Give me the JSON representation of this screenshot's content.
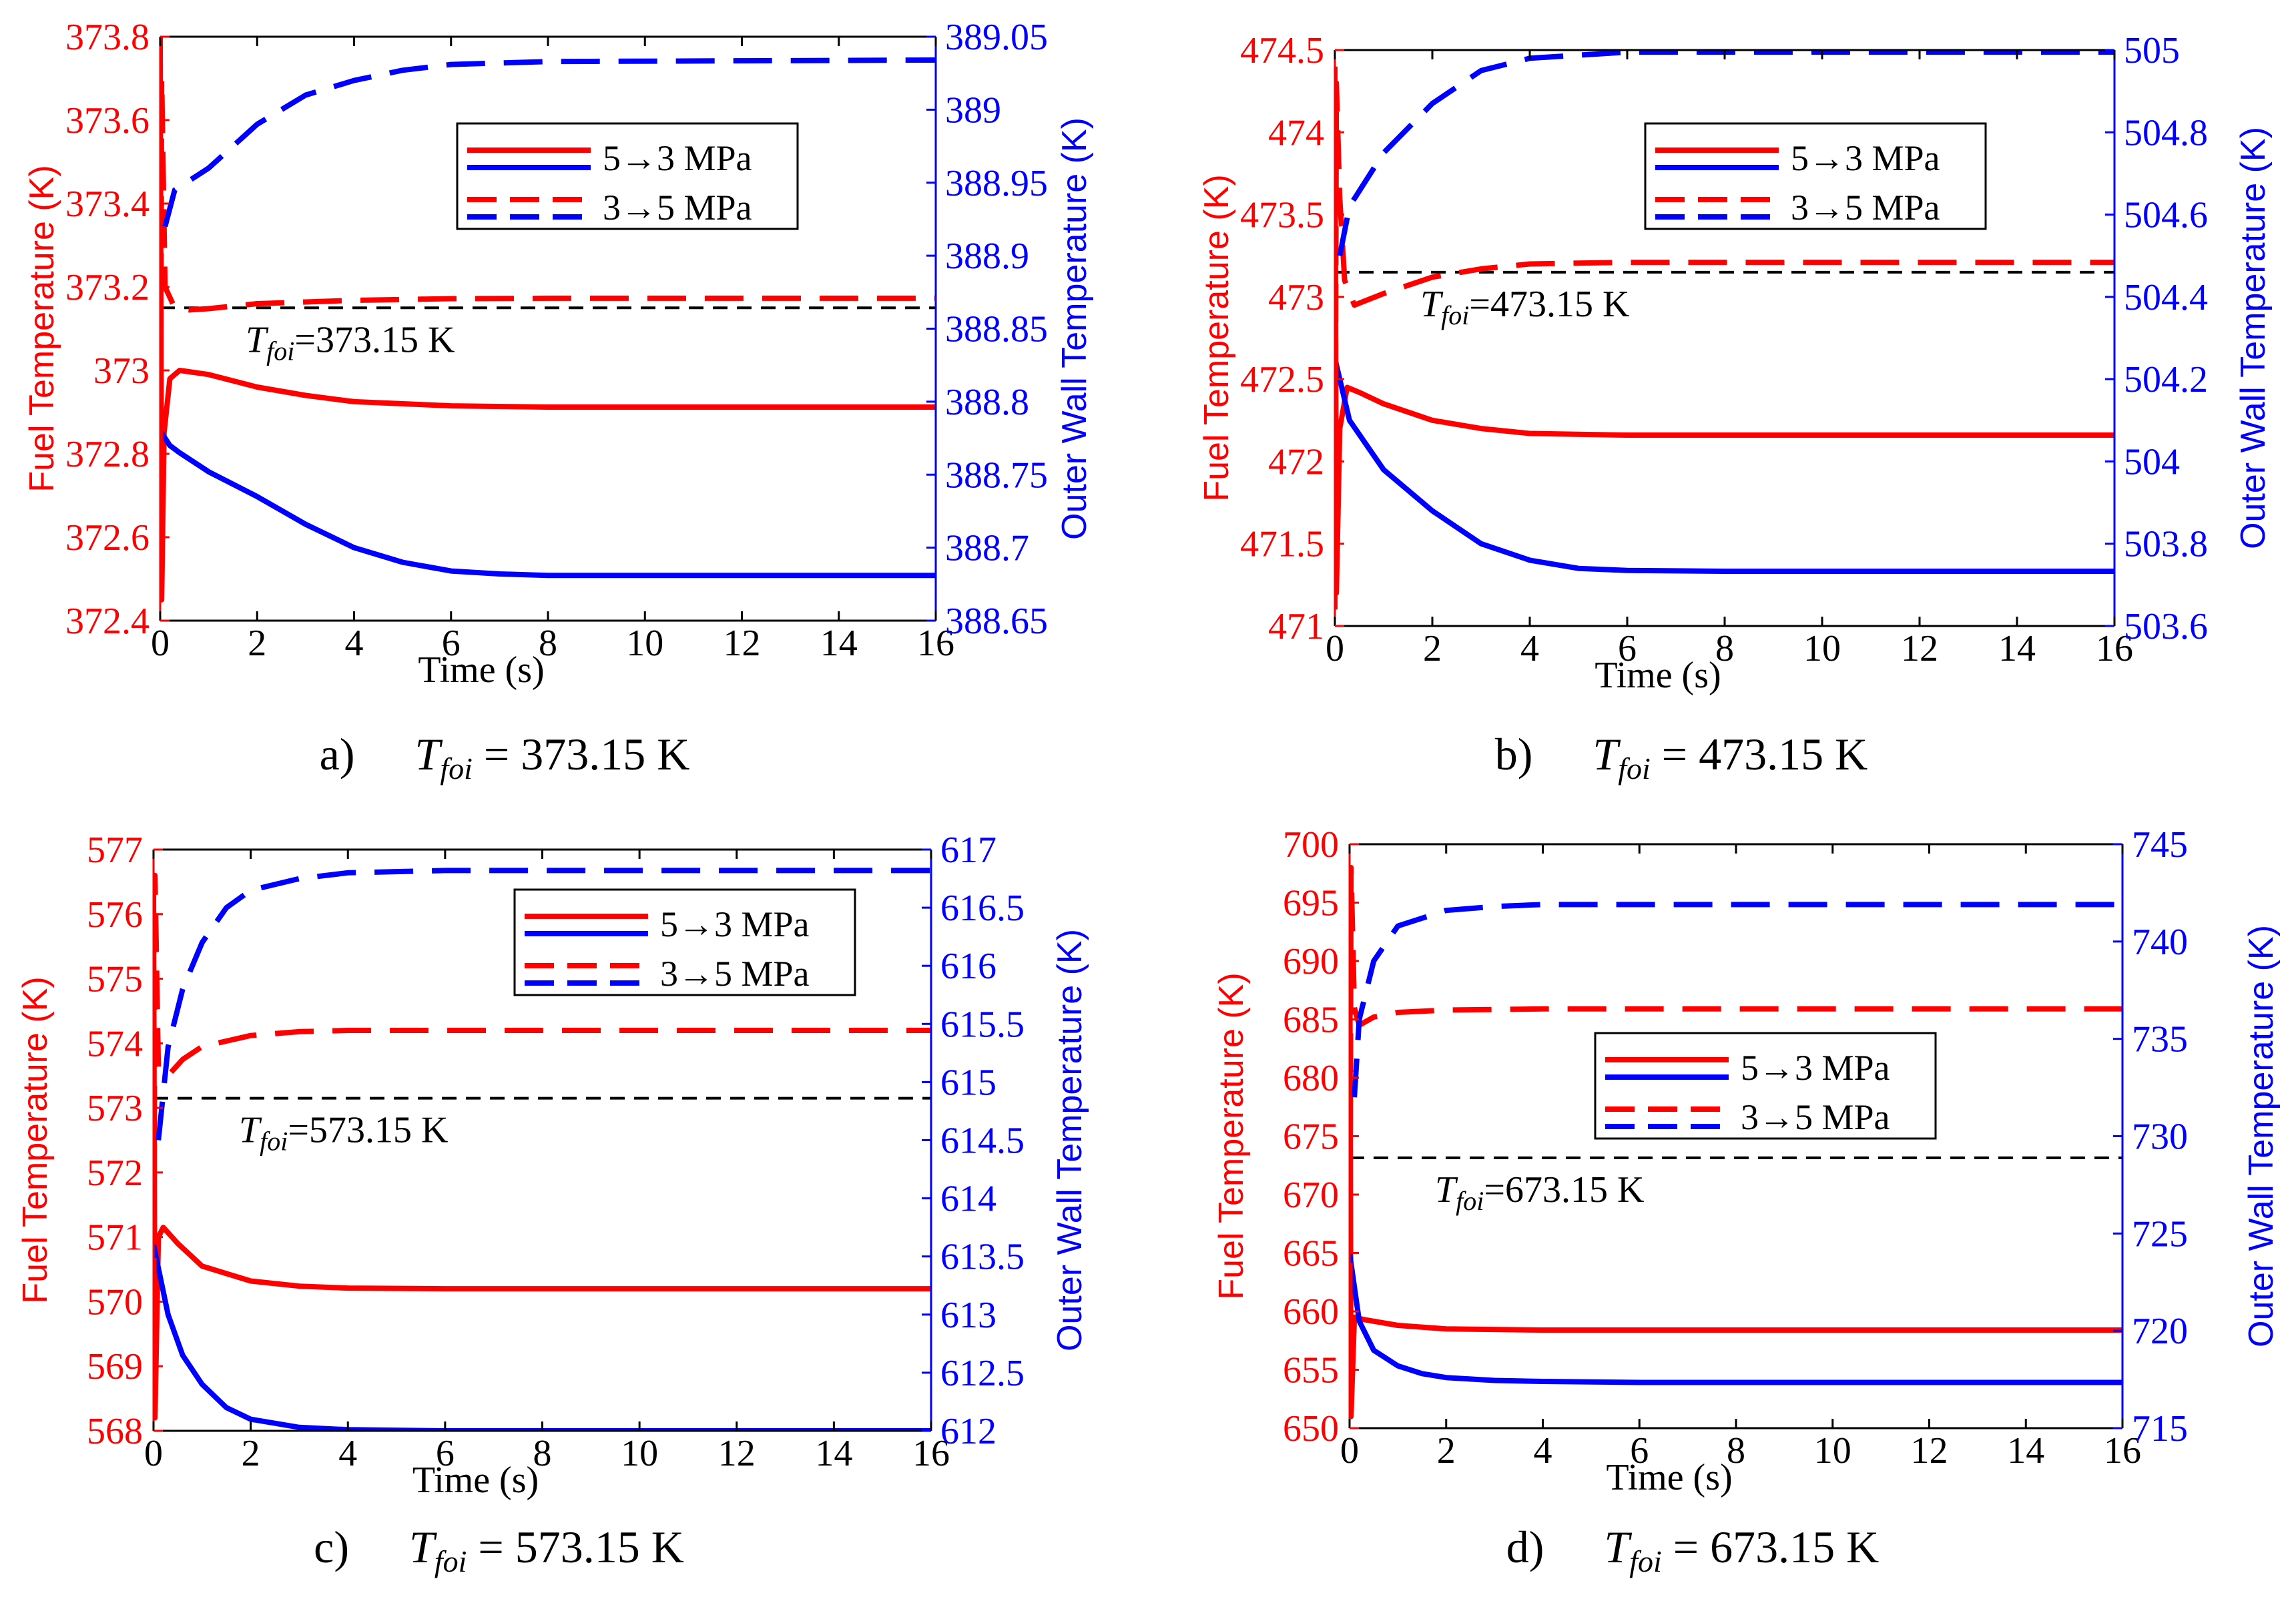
{
  "colors": {
    "left_axis": "#ff0000",
    "right_axis": "#0000ff",
    "reference": "#000000"
  },
  "chart_data": [
    {
      "type": "line",
      "panel_label": "a)",
      "caption_symbol": "T",
      "caption_sub": "foi",
      "caption_value": " = 373.15 K",
      "xlabel": "Time (s)",
      "ylabel_left": "Fuel Temperature (K)",
      "ylabel_right": "Outer Wall Temperature (K)",
      "xlim": [
        0,
        16
      ],
      "xticks": [
        0,
        2,
        4,
        6,
        8,
        10,
        12,
        14,
        16
      ],
      "ylim_left": [
        372.4,
        373.8
      ],
      "yticks_left": [
        "372.4",
        "372.6",
        "372.8",
        "373",
        "373.2",
        "373.4",
        "373.6",
        "373.8"
      ],
      "ylim_right": [
        388.65,
        389.05
      ],
      "yticks_right": [
        "388.65",
        "388.7",
        "388.75",
        "388.8",
        "388.85",
        "388.9",
        "388.95",
        "389",
        "389.05"
      ],
      "reference": {
        "value": 373.15,
        "label_symbol": "T",
        "label_sub": "foi",
        "label_value": "=373.15 K"
      },
      "legend": [
        "5→3 MPa",
        "3→5 MPa"
      ],
      "legend_position": "top-right",
      "series": [
        {
          "name": "Fuel 5→3 MPa",
          "axis": "left",
          "style": "solid",
          "points": [
            [
              0,
              373.8
            ],
            [
              0.03,
              372.45
            ],
            [
              0.08,
              372.85
            ],
            [
              0.2,
              372.98
            ],
            [
              0.4,
              373.0
            ],
            [
              1,
              372.99
            ],
            [
              2,
              372.96
            ],
            [
              3,
              372.94
            ],
            [
              4,
              372.925
            ],
            [
              6,
              372.915
            ],
            [
              8,
              372.912
            ],
            [
              16,
              372.912
            ]
          ]
        },
        {
          "name": "Wall 5→3 MPa",
          "axis": "right",
          "style": "solid",
          "points": [
            [
              0,
              388.78
            ],
            [
              0.2,
              388.77
            ],
            [
              0.4,
              388.765
            ],
            [
              1,
              388.752
            ],
            [
              2,
              388.735
            ],
            [
              3,
              388.716
            ],
            [
              4,
              388.7
            ],
            [
              5,
              388.69
            ],
            [
              6,
              388.684
            ],
            [
              7,
              388.682
            ],
            [
              8,
              388.681
            ],
            [
              16,
              388.681
            ]
          ]
        },
        {
          "name": "Fuel 3→5 MPa",
          "axis": "left",
          "style": "dashed",
          "points": [
            [
              0,
              372.5
            ],
            [
              0.03,
              373.7
            ],
            [
              0.1,
              373.2
            ],
            [
              0.3,
              373.15
            ],
            [
              0.6,
              373.145
            ],
            [
              1,
              373.148
            ],
            [
              2,
              373.16
            ],
            [
              4,
              373.168
            ],
            [
              6,
              373.172
            ],
            [
              8,
              373.173
            ],
            [
              16,
              373.173
            ]
          ]
        },
        {
          "name": "Wall 3→5 MPa",
          "axis": "right",
          "style": "dashed",
          "points": [
            [
              0.1,
              388.92
            ],
            [
              0.3,
              388.945
            ],
            [
              1,
              388.96
            ],
            [
              2,
              388.99
            ],
            [
              3,
              389.01
            ],
            [
              4,
              389.02
            ],
            [
              5,
              389.027
            ],
            [
              6,
              389.031
            ],
            [
              8,
              389.033
            ],
            [
              16,
              389.034
            ]
          ]
        }
      ]
    },
    {
      "type": "line",
      "panel_label": "b)",
      "caption_symbol": "T",
      "caption_sub": "foi",
      "caption_value": " = 473.15 K",
      "xlabel": "Time (s)",
      "ylabel_left": "Fuel Temperature (K)",
      "ylabel_right": "Outer Wall Temperature (K)",
      "xlim": [
        0,
        16
      ],
      "xticks": [
        0,
        2,
        4,
        6,
        8,
        10,
        12,
        14,
        16
      ],
      "ylim_left": [
        471,
        474.5
      ],
      "yticks_left": [
        "471",
        "471.5",
        "472",
        "472.5",
        "473",
        "473.5",
        "474",
        "474.5"
      ],
      "ylim_right": [
        503.6,
        505
      ],
      "yticks_right": [
        "503.6",
        "503.8",
        "504",
        "504.2",
        "504.4",
        "504.6",
        "504.8",
        "505"
      ],
      "reference": {
        "value": 473.15,
        "label_symbol": "T",
        "label_sub": "foi",
        "label_value": "=473.15 K"
      },
      "legend": [
        "5→3 MPa",
        "3→5 MPa"
      ],
      "legend_position": "top-right",
      "series": [
        {
          "name": "Fuel 5→3 MPa",
          "axis": "left",
          "style": "solid",
          "points": [
            [
              0,
              474.4
            ],
            [
              0.03,
              471.2
            ],
            [
              0.1,
              472.2
            ],
            [
              0.25,
              472.45
            ],
            [
              0.5,
              472.42
            ],
            [
              1,
              472.35
            ],
            [
              2,
              472.25
            ],
            [
              3,
              472.2
            ],
            [
              4,
              472.17
            ],
            [
              6,
              472.16
            ],
            [
              16,
              472.16
            ]
          ]
        },
        {
          "name": "Wall 5→3 MPa",
          "axis": "right",
          "style": "solid",
          "points": [
            [
              0,
              504.25
            ],
            [
              0.3,
              504.1
            ],
            [
              1,
              503.98
            ],
            [
              2,
              503.88
            ],
            [
              3,
              503.8
            ],
            [
              4,
              503.76
            ],
            [
              5,
              503.74
            ],
            [
              6,
              503.735
            ],
            [
              8,
              503.733
            ],
            [
              16,
              503.733
            ]
          ]
        },
        {
          "name": "Fuel 3→5 MPa",
          "axis": "left",
          "style": "dashed",
          "points": [
            [
              0,
              471.1
            ],
            [
              0.03,
              474.3
            ],
            [
              0.1,
              473.6
            ],
            [
              0.2,
              473.1
            ],
            [
              0.4,
              472.95
            ],
            [
              1,
              473.02
            ],
            [
              2,
              473.12
            ],
            [
              3,
              473.17
            ],
            [
              4,
              473.2
            ],
            [
              6,
              473.21
            ],
            [
              16,
              473.21
            ]
          ]
        },
        {
          "name": "Wall 3→5 MPa",
          "axis": "right",
          "style": "dashed",
          "points": [
            [
              0.1,
              504.5
            ],
            [
              0.3,
              504.62
            ],
            [
              1,
              504.75
            ],
            [
              2,
              504.87
            ],
            [
              3,
              504.95
            ],
            [
              4,
              504.98
            ],
            [
              6,
              504.995
            ],
            [
              16,
              504.995
            ]
          ]
        }
      ]
    },
    {
      "type": "line",
      "panel_label": "c)",
      "caption_symbol": "T",
      "caption_sub": "foi",
      "caption_value": " = 573.15 K",
      "xlabel": "Time (s)",
      "ylabel_left": "Fuel Temperature (K)",
      "ylabel_right": "Outer Wall Temperature (K)",
      "xlim": [
        0,
        16
      ],
      "xticks": [
        0,
        2,
        4,
        6,
        8,
        10,
        12,
        14,
        16
      ],
      "ylim_left": [
        568,
        577
      ],
      "yticks_left": [
        "568",
        "569",
        "570",
        "571",
        "572",
        "573",
        "574",
        "575",
        "576",
        "577"
      ],
      "ylim_right": [
        612,
        617
      ],
      "yticks_right": [
        "612",
        "612.5",
        "613",
        "613.5",
        "614",
        "614.5",
        "615",
        "615.5",
        "616",
        "616.5",
        "617"
      ],
      "reference": {
        "value": 573.15,
        "label_symbol": "T",
        "label_sub": "foi",
        "label_value": "=573.15 K"
      },
      "legend": [
        "5→3 MPa",
        "3→5 MPa"
      ],
      "legend_position": "top-right",
      "series": [
        {
          "name": "Fuel 5→3 MPa",
          "axis": "left",
          "style": "solid",
          "points": [
            [
              0,
              576.5
            ],
            [
              0.03,
              568.2
            ],
            [
              0.1,
              571.0
            ],
            [
              0.2,
              571.15
            ],
            [
              0.5,
              570.9
            ],
            [
              1,
              570.55
            ],
            [
              2,
              570.32
            ],
            [
              3,
              570.24
            ],
            [
              4,
              570.21
            ],
            [
              6,
              570.2
            ],
            [
              16,
              570.2
            ]
          ]
        },
        {
          "name": "Wall 5→3 MPa",
          "axis": "right",
          "style": "solid",
          "points": [
            [
              0,
              613.6
            ],
            [
              0.3,
              613.0
            ],
            [
              0.6,
              612.65
            ],
            [
              1,
              612.4
            ],
            [
              1.5,
              612.2
            ],
            [
              2,
              612.1
            ],
            [
              3,
              612.03
            ],
            [
              4,
              612.01
            ],
            [
              6,
              612.0
            ],
            [
              16,
              612.0
            ]
          ]
        },
        {
          "name": "Fuel 3→5 MPa",
          "axis": "left",
          "style": "dashed",
          "points": [
            [
              0,
              568.3
            ],
            [
              0.03,
              576.6
            ],
            [
              0.1,
              573.6
            ],
            [
              0.3,
              573.5
            ],
            [
              0.6,
              573.75
            ],
            [
              1,
              573.95
            ],
            [
              2,
              574.12
            ],
            [
              3,
              574.18
            ],
            [
              4,
              574.2
            ],
            [
              6,
              574.2
            ],
            [
              16,
              574.2
            ]
          ]
        },
        {
          "name": "Wall 3→5 MPa",
          "axis": "right",
          "style": "dashed",
          "points": [
            [
              0.1,
              614.5
            ],
            [
              0.3,
              615.3
            ],
            [
              0.6,
              615.8
            ],
            [
              1,
              616.2
            ],
            [
              1.5,
              616.5
            ],
            [
              2,
              616.65
            ],
            [
              3,
              616.75
            ],
            [
              4,
              616.8
            ],
            [
              6,
              616.82
            ],
            [
              16,
              616.82
            ]
          ]
        }
      ]
    },
    {
      "type": "line",
      "panel_label": "d)",
      "caption_symbol": "T",
      "caption_sub": "foi",
      "caption_value": " = 673.15 K",
      "xlabel": "Time (s)",
      "ylabel_left": "Fuel Temperature (K)",
      "ylabel_right": "Outer Wall Temperature (K)",
      "xlim": [
        0,
        16
      ],
      "xticks": [
        0,
        2,
        4,
        6,
        8,
        10,
        12,
        14,
        16
      ],
      "ylim_left": [
        650,
        700
      ],
      "yticks_left": [
        "650",
        "655",
        "660",
        "665",
        "670",
        "675",
        "680",
        "685",
        "690",
        "695",
        "700"
      ],
      "ylim_right": [
        715,
        745
      ],
      "yticks_right": [
        "715",
        "720",
        "725",
        "730",
        "735",
        "740",
        "745"
      ],
      "reference": {
        "value": 673.15,
        "label_symbol": "T",
        "label_sub": "foi",
        "label_value": "=673.15 K"
      },
      "legend": [
        "5→3 MPa",
        "3→5 MPa"
      ],
      "legend_position": "top-right",
      "series": [
        {
          "name": "Fuel 5→3 MPa",
          "axis": "left",
          "style": "solid",
          "points": [
            [
              0,
              698
            ],
            [
              0.03,
              651
            ],
            [
              0.1,
              659.5
            ],
            [
              0.3,
              659.3
            ],
            [
              1,
              658.8
            ],
            [
              2,
              658.5
            ],
            [
              4,
              658.4
            ],
            [
              16,
              658.4
            ]
          ]
        },
        {
          "name": "Wall 5→3 MPa",
          "axis": "right",
          "style": "solid",
          "points": [
            [
              0,
              724
            ],
            [
              0.2,
              720.5
            ],
            [
              0.5,
              719.0
            ],
            [
              1,
              718.2
            ],
            [
              1.5,
              717.8
            ],
            [
              2,
              717.6
            ],
            [
              3,
              717.45
            ],
            [
              4,
              717.4
            ],
            [
              6,
              717.35
            ],
            [
              16,
              717.35
            ]
          ]
        },
        {
          "name": "Fuel 3→5 MPa",
          "axis": "left",
          "style": "dashed",
          "points": [
            [
              0,
              651
            ],
            [
              0.03,
              698
            ],
            [
              0.1,
              686
            ],
            [
              0.2,
              684.5
            ],
            [
              0.5,
              685.2
            ],
            [
              1,
              685.6
            ],
            [
              2,
              685.8
            ],
            [
              4,
              685.9
            ],
            [
              16,
              685.9
            ]
          ]
        },
        {
          "name": "Wall 3→5 MPa",
          "axis": "right",
          "style": "dashed",
          "points": [
            [
              0.1,
              732
            ],
            [
              0.2,
              736
            ],
            [
              0.5,
              739
            ],
            [
              1,
              740.8
            ],
            [
              2,
              741.6
            ],
            [
              3,
              741.8
            ],
            [
              4,
              741.9
            ],
            [
              16,
              741.9
            ]
          ]
        }
      ]
    }
  ]
}
